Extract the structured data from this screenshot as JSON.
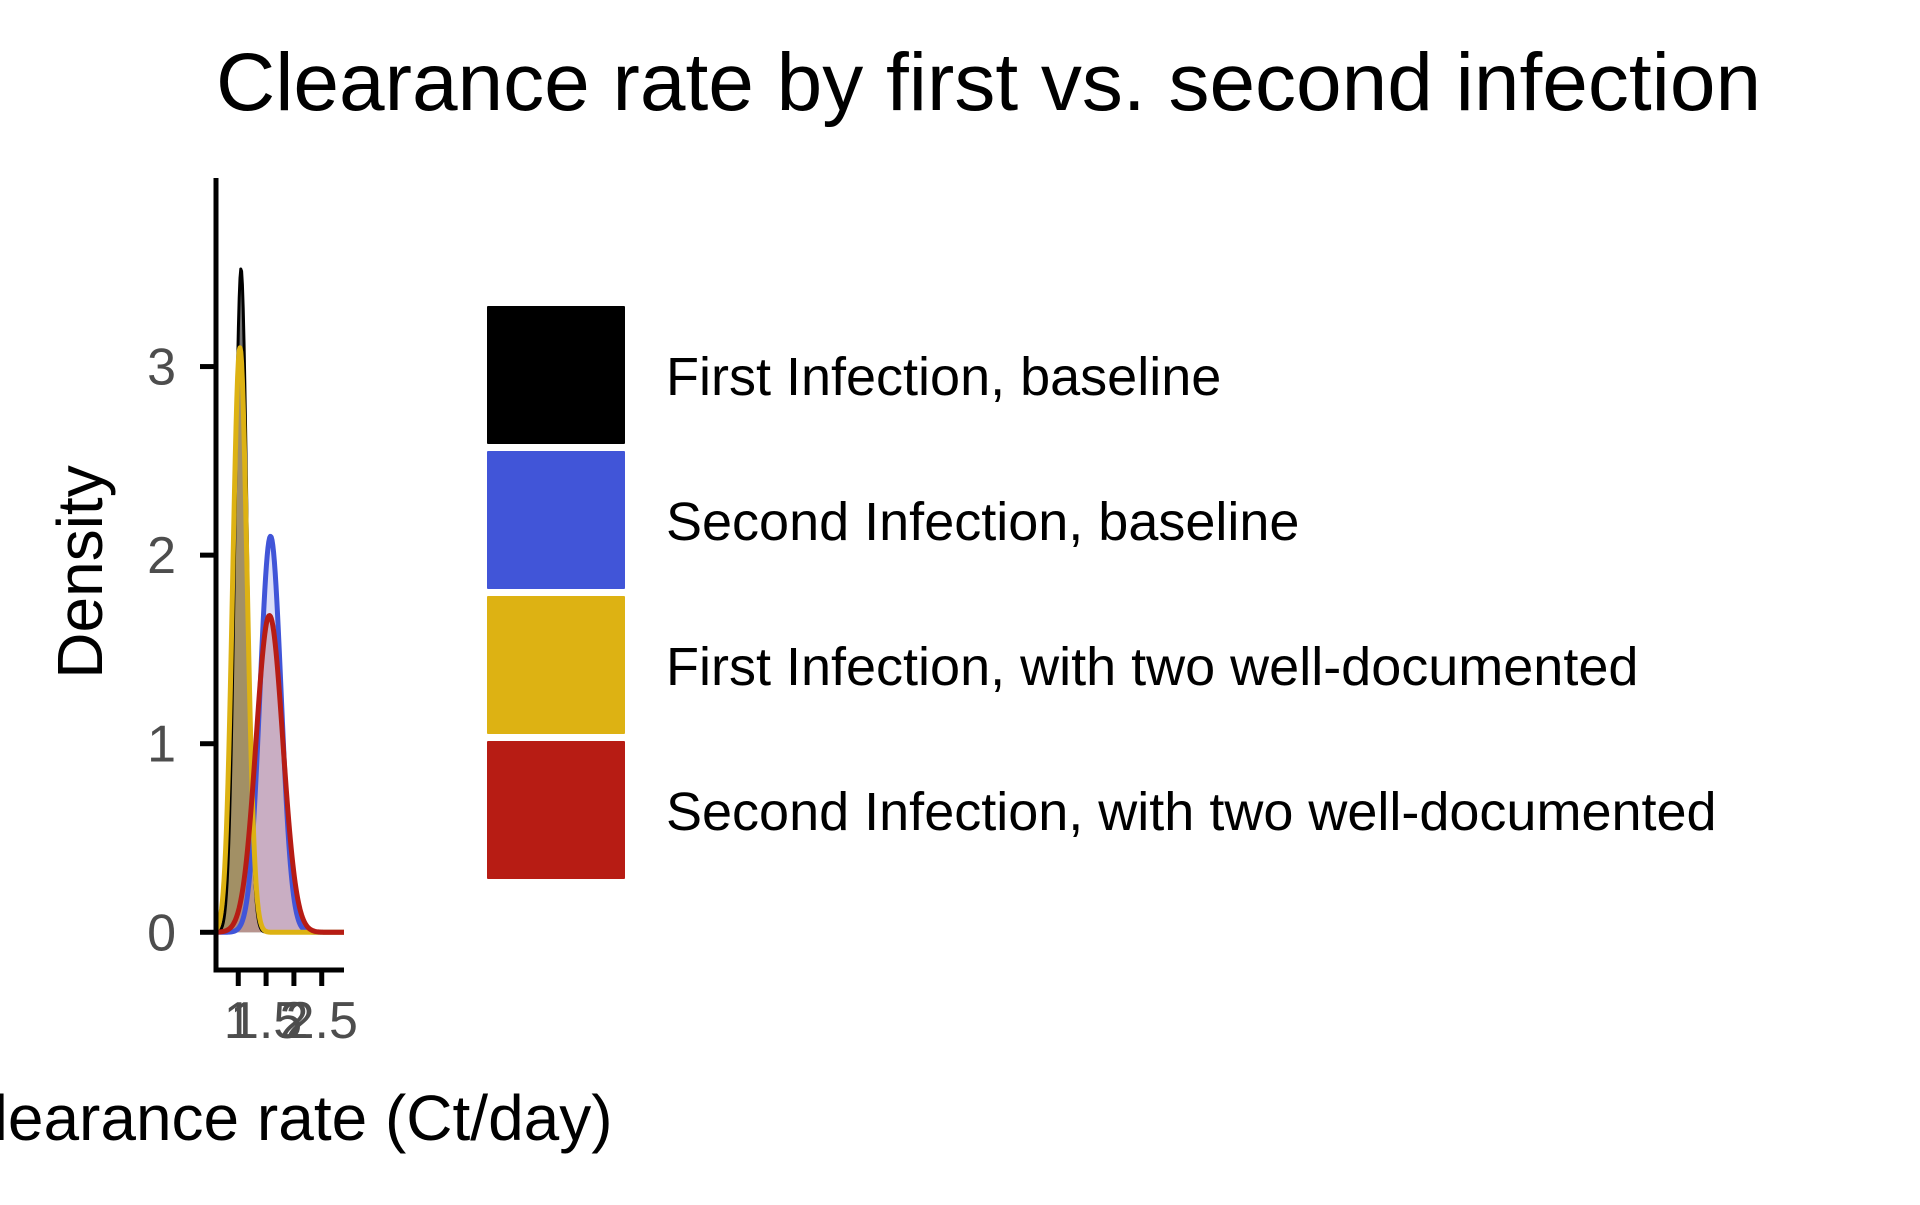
{
  "chart_data": {
    "type": "area",
    "title": "Clearance rate by first vs. second infection",
    "xlabel": "Clearance rate (Ct/day)",
    "ylabel": "Density",
    "x_ticks": [
      1,
      1.5,
      2,
      2.5
    ],
    "x_tick_labels": [
      "1",
      "1.5",
      "2",
      "2.5"
    ],
    "xlim": [
      0.6,
      2.9
    ],
    "y_ticks": [
      0,
      1,
      2,
      3
    ],
    "y_tick_labels": [
      "0",
      "1",
      "2",
      "3"
    ],
    "ylim": [
      -0.2,
      4.0
    ],
    "grid": false,
    "legend_position": "right",
    "series": [
      {
        "name": "First Infection, baseline",
        "color": "#000000",
        "fill": "#000000",
        "mean": 1.05,
        "peak": 3.52,
        "sd": 0.11,
        "stroke_width": 3
      },
      {
        "name": "Second Infection, baseline",
        "color": "#4155D8",
        "fill": "#BDC3F3",
        "mean": 1.58,
        "peak": 2.1,
        "sd": 0.19,
        "stroke_width": 5
      },
      {
        "name": "First Infection, with two well-documented",
        "color": "#DDB213",
        "fill": "#C9A85A",
        "mean": 1.03,
        "peak": 3.1,
        "sd": 0.13,
        "stroke_width": 5
      },
      {
        "name": "Second Infection, with two well-documented",
        "color": "#B71C14",
        "fill": "#B98797",
        "mean": 1.56,
        "peak": 1.68,
        "sd": 0.24,
        "stroke_width": 5
      }
    ]
  }
}
